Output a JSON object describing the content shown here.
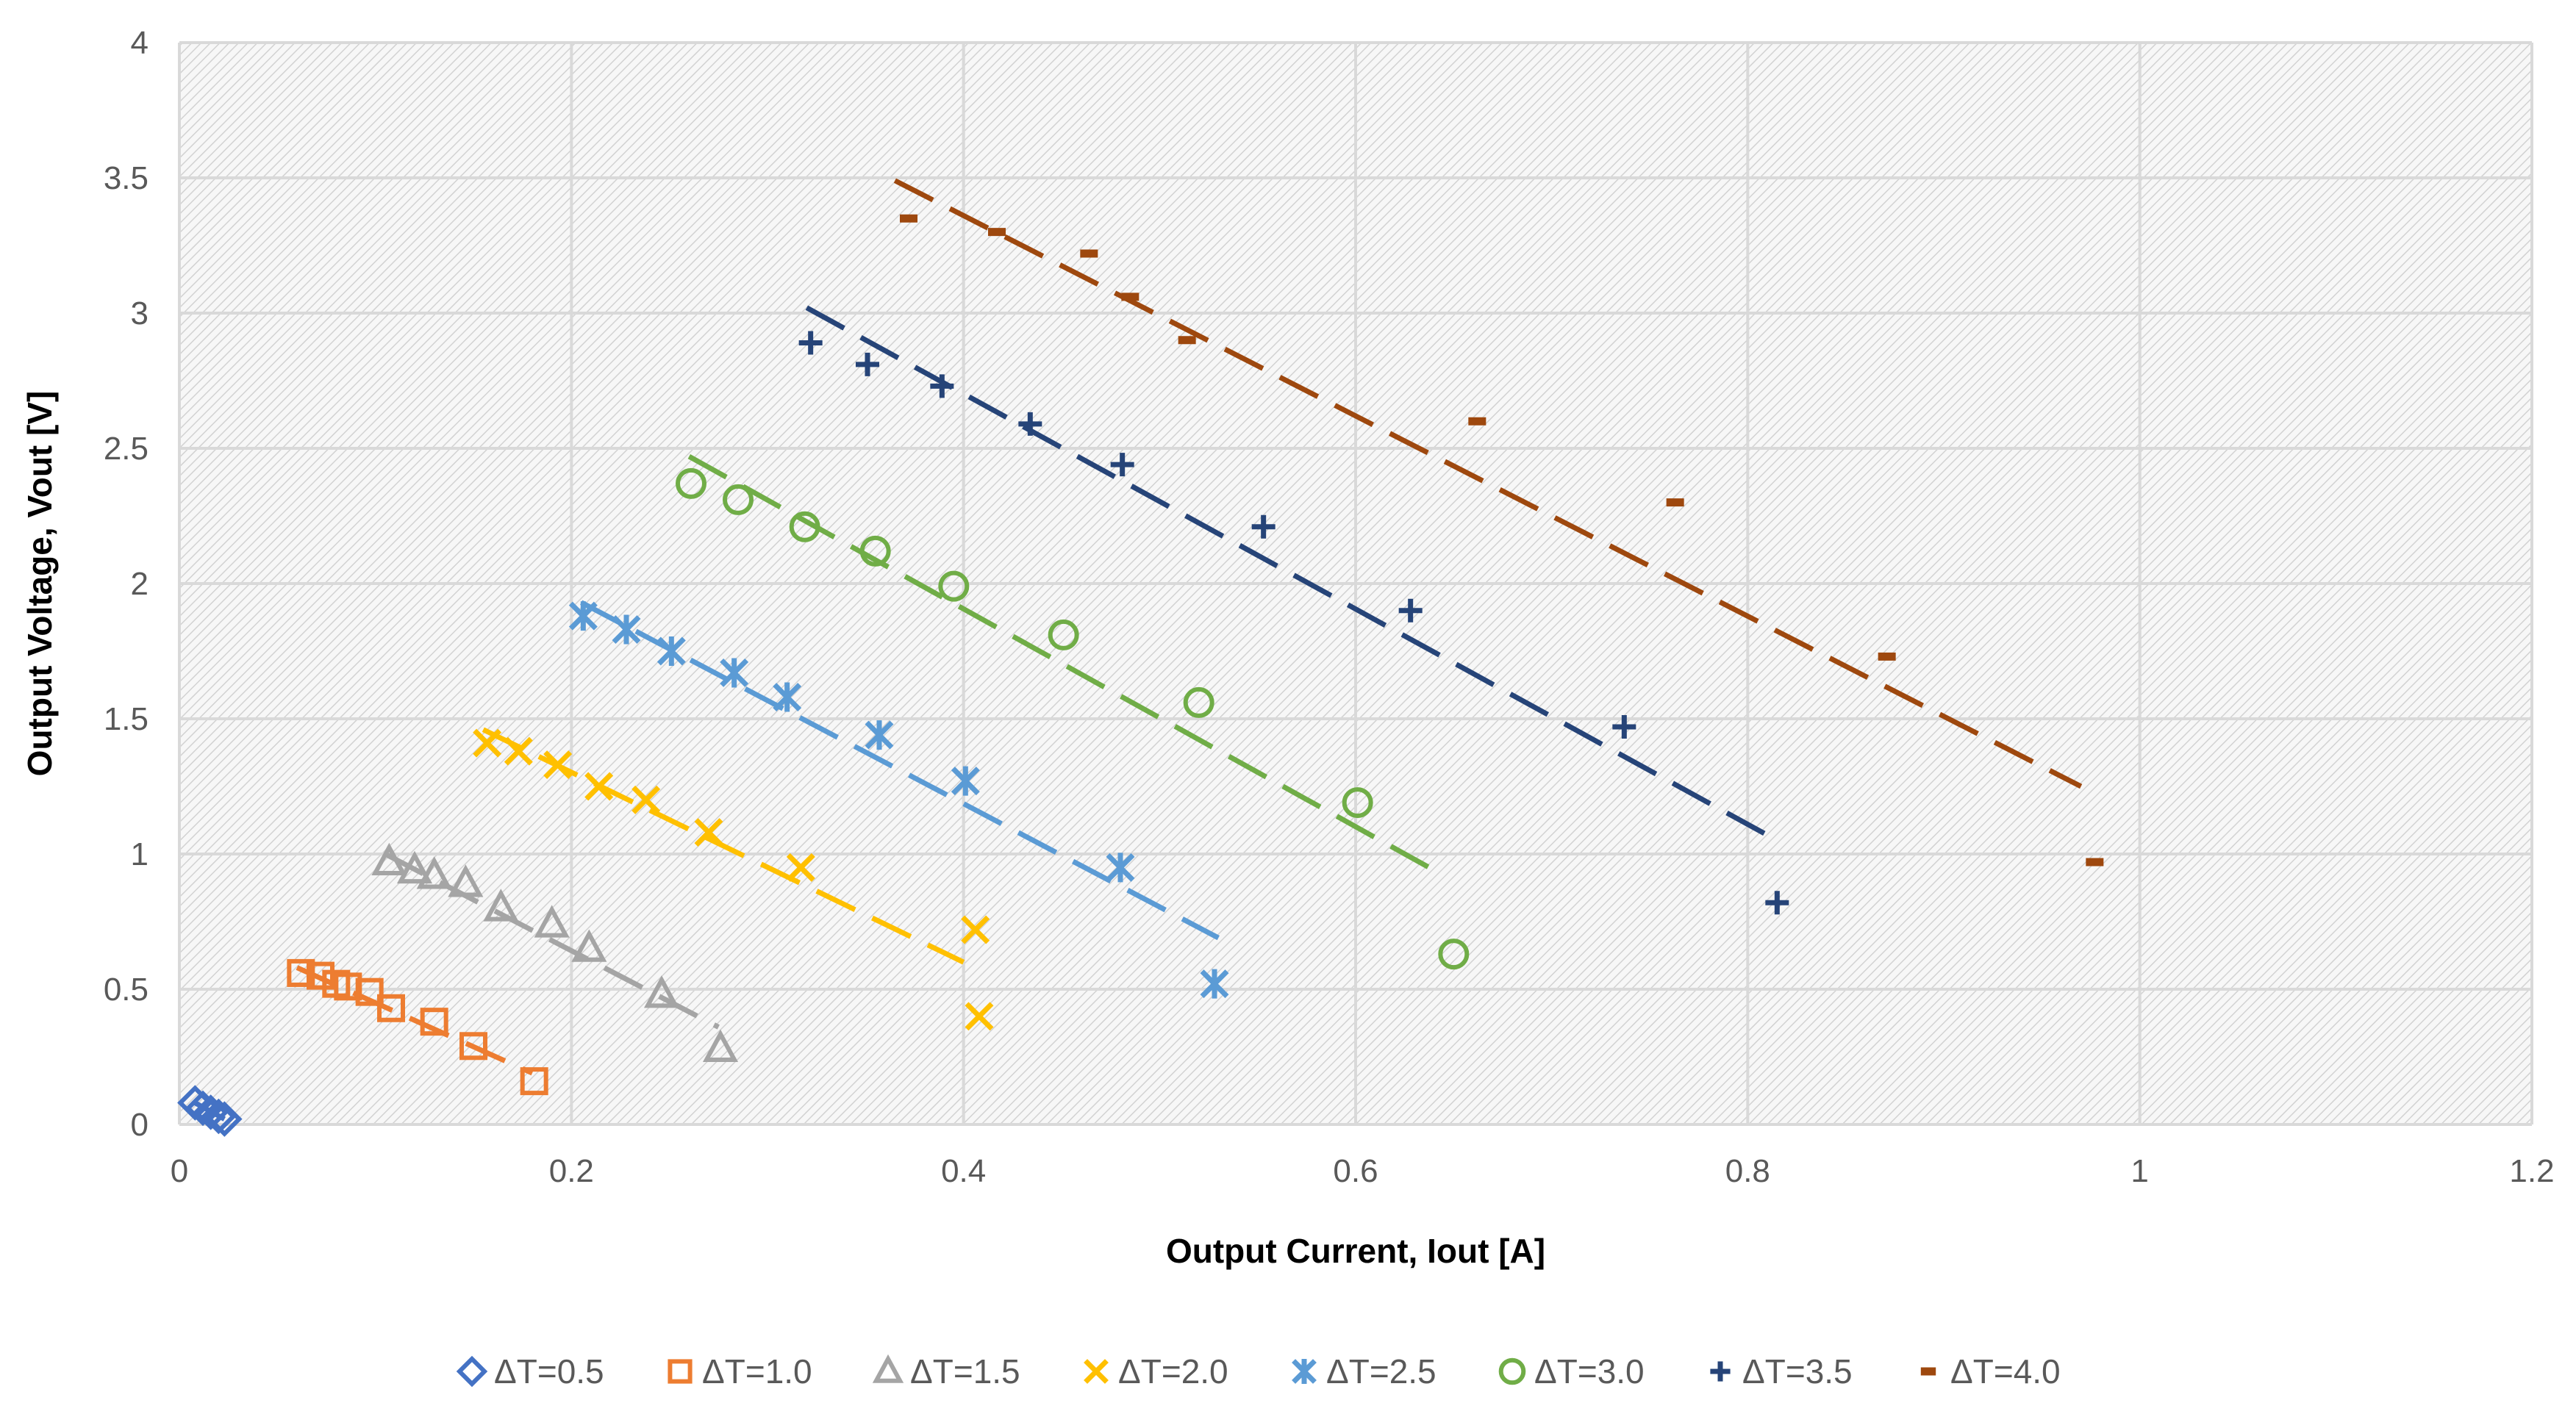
{
  "chart_data": {
    "type": "scatter",
    "title": "",
    "xlabel": "Output Current, Iout [A]",
    "ylabel": "Output Voltage, Vout [V]",
    "xlim": [
      0,
      1.2
    ],
    "ylim": [
      0,
      4
    ],
    "xticks": [
      0,
      0.2,
      0.4,
      0.6,
      0.8,
      1,
      1.2
    ],
    "yticks": [
      0,
      0.5,
      1,
      1.5,
      2,
      2.5,
      3,
      3.5,
      4
    ],
    "xtick_labels": [
      "0",
      "0.2",
      "0.4",
      "0.6",
      "0.8",
      "1",
      "1.2"
    ],
    "ytick_labels": [
      "0",
      "0.5",
      "1",
      "1.5",
      "2",
      "2.5",
      "3",
      "3.5",
      "4"
    ],
    "grid": true,
    "legend_position": "bottom",
    "series": [
      {
        "name": "ΔT=0.5",
        "marker": "diamond",
        "color": "#4472C4",
        "x": [
          0.008,
          0.012,
          0.016,
          0.02,
          0.023
        ],
        "y": [
          0.08,
          0.06,
          0.045,
          0.03,
          0.02
        ],
        "trendline": {
          "x": [
            0.008,
            0.023
          ],
          "y": [
            0.08,
            0.02
          ]
        }
      },
      {
        "name": "ΔT=1.0",
        "marker": "square",
        "color": "#ED7D31",
        "x": [
          0.062,
          0.072,
          0.08,
          0.086,
          0.097,
          0.108,
          0.13,
          0.15,
          0.181
        ],
        "y": [
          0.56,
          0.55,
          0.52,
          0.51,
          0.49,
          0.43,
          0.38,
          0.29,
          0.16
        ],
        "trendline": {
          "x": [
            0.06,
            0.18
          ],
          "y": [
            0.58,
            0.19
          ]
        }
      },
      {
        "name": "ΔT=1.5",
        "marker": "triangle",
        "color": "#A5A5A5",
        "x": [
          0.107,
          0.12,
          0.13,
          0.146,
          0.164,
          0.19,
          0.209,
          0.246,
          0.276
        ],
        "y": [
          0.97,
          0.94,
          0.92,
          0.89,
          0.8,
          0.74,
          0.65,
          0.48,
          0.28
        ],
        "trendline": {
          "x": [
            0.105,
            0.275
          ],
          "y": [
            1.0,
            0.36
          ]
        }
      },
      {
        "name": "ΔT=2.0",
        "marker": "x",
        "color": "#FFC000",
        "x": [
          0.157,
          0.173,
          0.193,
          0.214,
          0.238,
          0.27,
          0.317,
          0.406,
          0.408
        ],
        "y": [
          1.41,
          1.38,
          1.33,
          1.25,
          1.2,
          1.08,
          0.95,
          0.72,
          0.4
        ],
        "trendline": {
          "x": [
            0.155,
            0.4
          ],
          "y": [
            1.46,
            0.6
          ]
        }
      },
      {
        "name": "ΔT=2.5",
        "marker": "star",
        "color": "#5B9BD5",
        "x": [
          0.206,
          0.228,
          0.251,
          0.283,
          0.31,
          0.357,
          0.401,
          0.48,
          0.528
        ],
        "y": [
          1.88,
          1.83,
          1.75,
          1.67,
          1.58,
          1.44,
          1.27,
          0.95,
          0.52
        ],
        "trendline": {
          "x": [
            0.205,
            0.53
          ],
          "y": [
            1.93,
            0.69
          ]
        }
      },
      {
        "name": "ΔT=3.0",
        "marker": "circle",
        "color": "#70AD47",
        "x": [
          0.261,
          0.285,
          0.319,
          0.355,
          0.395,
          0.451,
          0.52,
          0.601,
          0.65
        ],
        "y": [
          2.37,
          2.31,
          2.21,
          2.12,
          1.99,
          1.81,
          1.56,
          1.19,
          0.63
        ],
        "trendline": {
          "x": [
            0.26,
            0.64
          ],
          "y": [
            2.47,
            0.94
          ]
        }
      },
      {
        "name": "ΔT=3.5",
        "marker": "plus",
        "color": "#264478",
        "x": [
          0.322,
          0.351,
          0.389,
          0.434,
          0.481,
          0.553,
          0.628,
          0.737,
          0.815
        ],
        "y": [
          2.89,
          2.81,
          2.73,
          2.59,
          2.44,
          2.21,
          1.9,
          1.47,
          0.82
        ],
        "trendline": {
          "x": [
            0.32,
            0.81
          ],
          "y": [
            3.02,
            1.07
          ]
        }
      },
      {
        "name": "ΔT=4.0",
        "marker": "dash",
        "color": "#9E480E",
        "x": [
          0.372,
          0.417,
          0.464,
          0.485,
          0.514,
          0.662,
          0.763,
          0.871,
          0.977
        ],
        "y": [
          3.35,
          3.3,
          3.22,
          3.06,
          2.9,
          2.6,
          2.3,
          1.73,
          0.97
        ],
        "trendline": {
          "x": [
            0.365,
            0.97
          ],
          "y": [
            3.49,
            1.25
          ]
        }
      }
    ]
  }
}
